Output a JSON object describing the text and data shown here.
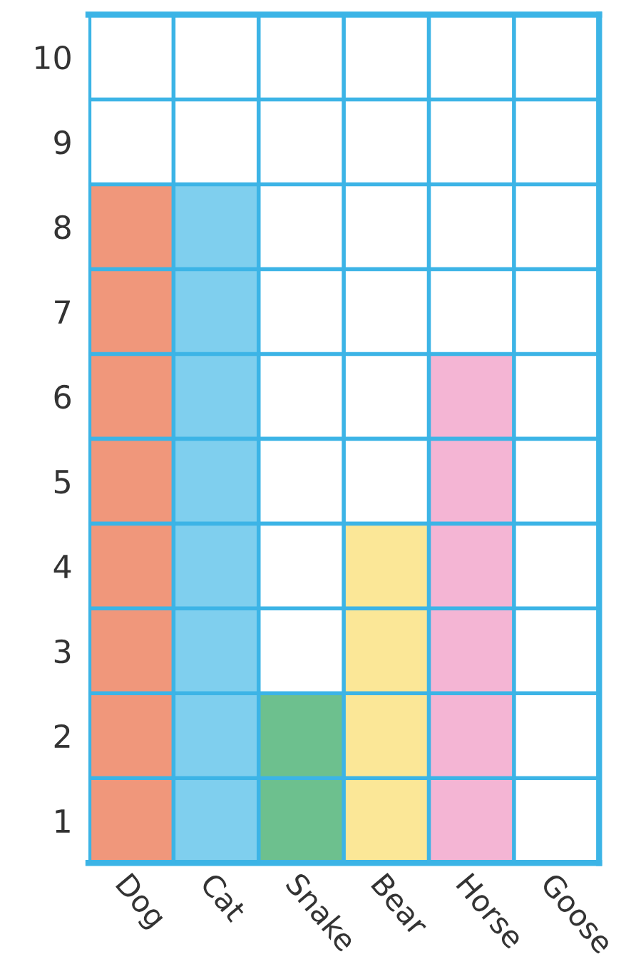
{
  "chart_data": {
    "type": "bar",
    "categories": [
      "Dog",
      "Cat",
      "Snake",
      "Bear",
      "Horse",
      "Goose"
    ],
    "values": [
      8,
      8,
      2,
      4,
      6,
      0
    ],
    "colors": [
      "#f0977b",
      "#7fcfee",
      "#6dc08e",
      "#fbe797",
      "#f4b5d4",
      "#ffffff"
    ],
    "ylim": [
      0,
      10
    ],
    "yticks": [
      {
        "value": 0.5,
        "label": "1"
      },
      {
        "value": 1.5,
        "label": "2"
      },
      {
        "value": 2.5,
        "label": "3"
      },
      {
        "value": 3.5,
        "label": "4"
      },
      {
        "value": 4.5,
        "label": "5"
      },
      {
        "value": 5.5,
        "label": "6"
      },
      {
        "value": 6.5,
        "label": "7"
      },
      {
        "value": 7.5,
        "label": "8"
      },
      {
        "value": 8.5,
        "label": "9"
      },
      {
        "value": 9.5,
        "label": "10"
      }
    ],
    "grid": true
  }
}
